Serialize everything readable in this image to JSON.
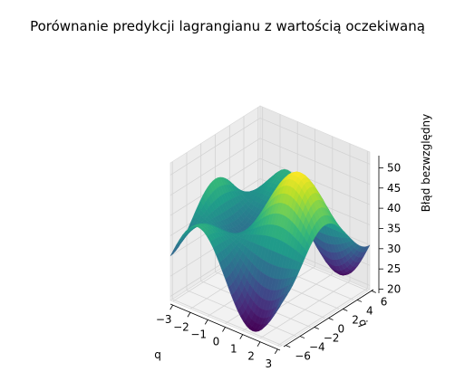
{
  "chart_data": {
    "type": "surface",
    "title": "Porównanie predykcji lagrangianu z wartością oczekiwaną",
    "xlabel": "q",
    "ylabel": "q̇",
    "zlabel": "Błąd bezwzględny",
    "xlim": [
      -3.14,
      3.14
    ],
    "ylim": [
      -6.28,
      6.28
    ],
    "zlim": [
      19,
      53
    ],
    "xticks": [
      "−3",
      "−2",
      "−1",
      "0",
      "1",
      "2",
      "3"
    ],
    "yticks": [
      "−6",
      "−4",
      "−2",
      "0",
      "2",
      "4",
      "6"
    ],
    "zticks": [
      "20",
      "25",
      "30",
      "35",
      "40",
      "45",
      "50"
    ],
    "colormap": "viridis",
    "surface_model": {
      "description": "z = 36 + 10*sin(q)*cos(q̇/2) + 6*cos(q̇/2)",
      "base": 36,
      "a": 10,
      "b": 6
    },
    "grid": true
  }
}
